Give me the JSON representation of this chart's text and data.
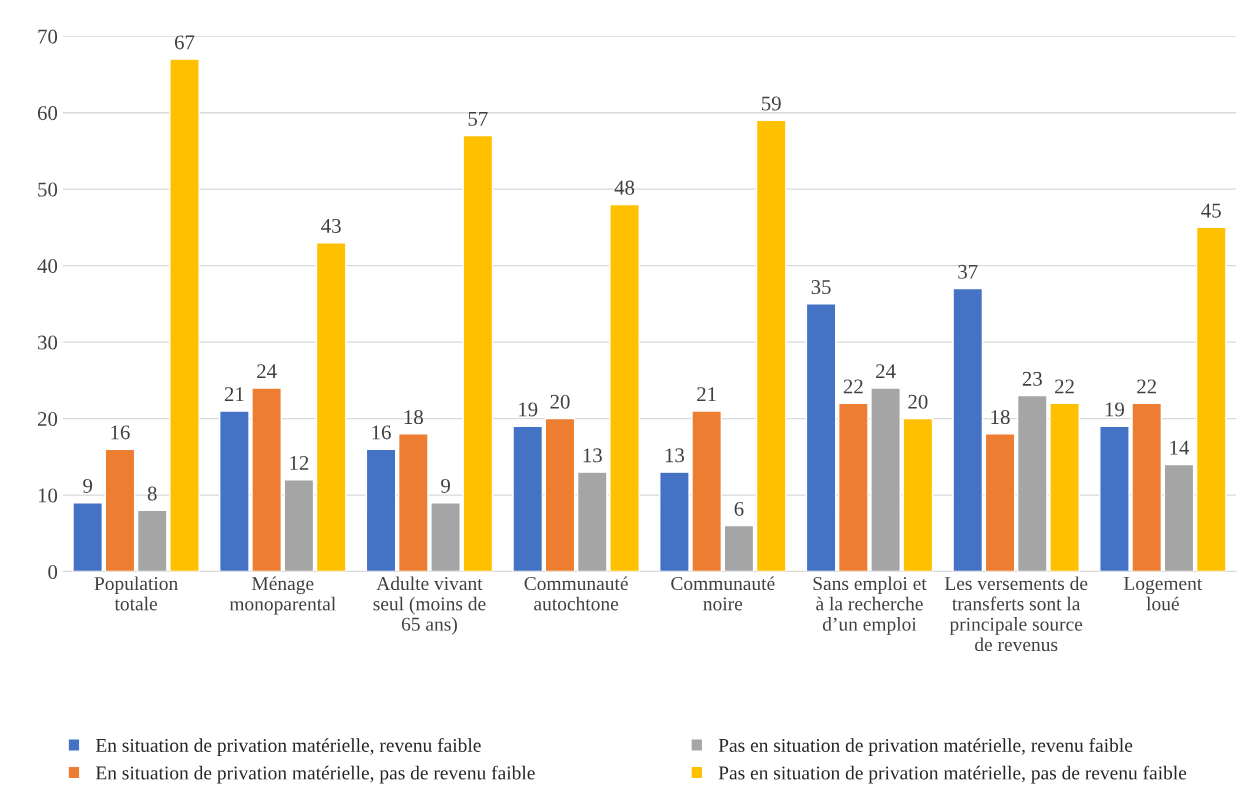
{
  "chart_data": {
    "type": "bar",
    "categories": [
      "Population\ntotale",
      "Ménage\nmonoparental",
      "Adulte vivant\nseul (moins de\n65 ans)",
      "Communauté\nautochtone",
      "Communauté\nnoire",
      "Sans emploi et\nà la recherche\nd’un emploi",
      "Les versements de\ntransferts sont la\nprincipale source\nde revenus",
      "Logement\nloué"
    ],
    "series": [
      {
        "name": "En situation de privation matérielle, revenu faible",
        "color": "#4472c4",
        "values": [
          9,
          21,
          16,
          19,
          13,
          35,
          37,
          19
        ]
      },
      {
        "name": "En situation de privation matérielle, pas de revenu faible",
        "color": "#ed7d31",
        "values": [
          16,
          24,
          18,
          20,
          21,
          22,
          18,
          22
        ]
      },
      {
        "name": "Pas en situation de privation matérielle, revenu faible",
        "color": "#a5a5a5",
        "values": [
          8,
          12,
          9,
          13,
          6,
          24,
          23,
          14
        ]
      },
      {
        "name": "Pas en situation de privation matérielle, pas de revenu faible",
        "color": "#ffc000",
        "values": [
          67,
          43,
          57,
          48,
          59,
          20,
          22,
          45
        ]
      }
    ],
    "ylim": [
      0,
      70
    ],
    "yticks": [
      0,
      10,
      20,
      30,
      40,
      50,
      60,
      70
    ],
    "grid": "y",
    "legend": "bottom",
    "data_labels": true
  }
}
